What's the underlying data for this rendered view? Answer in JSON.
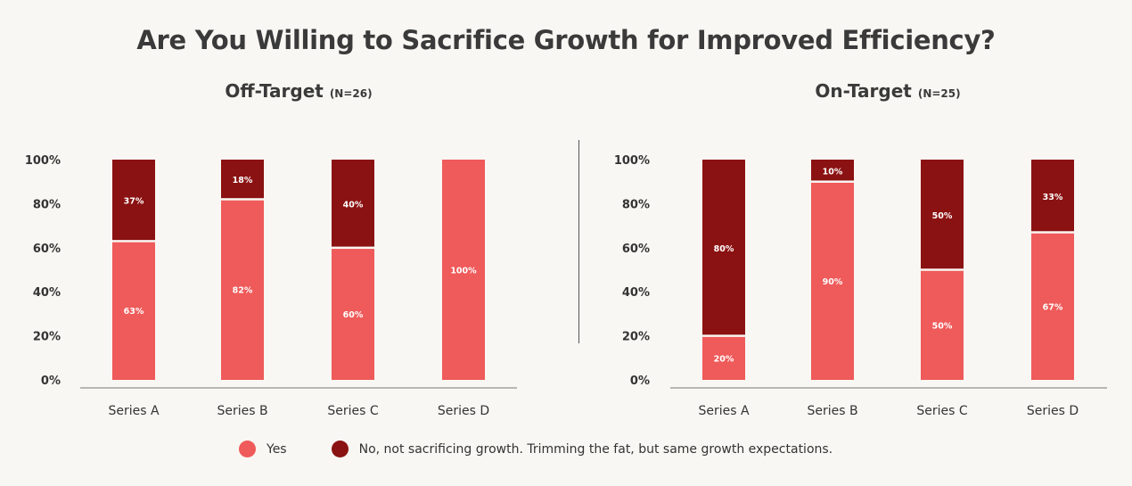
{
  "title": "Are You Willing to Sacrifice Growth for Improved Efficiency?",
  "colors": {
    "yes": "#ef5a5a",
    "no": "#8b1212"
  },
  "legend": {
    "yes": "Yes",
    "no": "No, not sacrificing growth. Trimming the fat, but same growth expectations."
  },
  "chart_data": [
    {
      "type": "bar",
      "stacked": true,
      "title": "Off-Target",
      "subtitle": "(N=26)",
      "categories": [
        "Series A",
        "Series B",
        "Series C",
        "Series D"
      ],
      "ylim": [
        0,
        100
      ],
      "yticks": [
        "0%",
        "20%",
        "40%",
        "60%",
        "80%",
        "100%"
      ],
      "grid": false,
      "legend_position": "bottom",
      "series": [
        {
          "name": "Yes",
          "values": [
            63,
            82,
            60,
            100
          ],
          "labels": [
            "63%",
            "82%",
            "60%",
            "100%"
          ]
        },
        {
          "name": "No, not sacrificing growth. Trimming the fat, but same growth expectations.",
          "values": [
            37,
            18,
            40,
            0
          ],
          "labels": [
            "37%",
            "18%",
            "40%",
            ""
          ]
        }
      ]
    },
    {
      "type": "bar",
      "stacked": true,
      "title": "On-Target",
      "subtitle": "(N=25)",
      "categories": [
        "Series A",
        "Series B",
        "Series C",
        "Series D"
      ],
      "ylim": [
        0,
        100
      ],
      "yticks": [
        "0%",
        "20%",
        "40%",
        "60%",
        "80%",
        "100%"
      ],
      "grid": false,
      "legend_position": "bottom",
      "series": [
        {
          "name": "Yes",
          "values": [
            20,
            90,
            50,
            67
          ],
          "labels": [
            "20%",
            "90%",
            "50%",
            "67%"
          ]
        },
        {
          "name": "No, not sacrificing growth. Trimming the fat, but same growth expectations.",
          "values": [
            80,
            10,
            50,
            33
          ],
          "labels": [
            "80%",
            "10%",
            "50%",
            "33%"
          ]
        }
      ]
    }
  ]
}
